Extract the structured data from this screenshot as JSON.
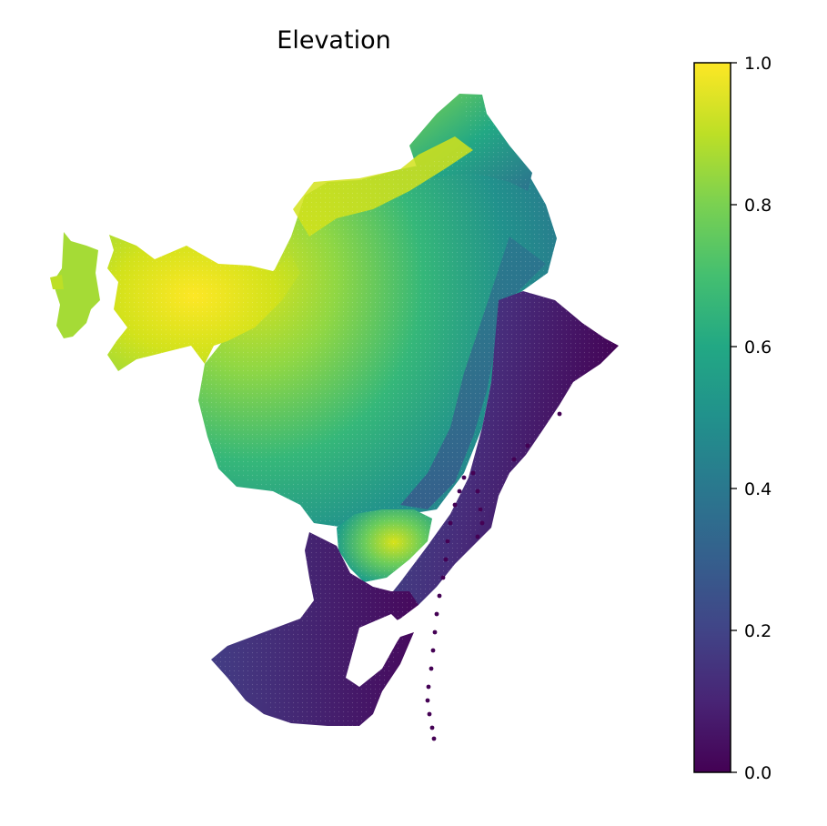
{
  "title": "Elevation",
  "colorbar": {
    "colormap": "viridis",
    "min": 0.0,
    "max": 1.0,
    "ticks": [
      "0.0",
      "0.2",
      "0.4",
      "0.6",
      "0.8",
      "1.0"
    ]
  },
  "colors": {
    "viridis_low": "#440154",
    "viridis_mid": "#21918c",
    "viridis_high": "#fde725",
    "frame": "#000000",
    "background": "#ffffff"
  },
  "map": {
    "type": "scatter-raster",
    "value_pattern": "high elevation (≈0.85–1.0) in the west and north ridge, mid values (≈0.4–0.6) across the centre, low values (≈0.0–0.15) along the south-eastern coast and southern delta, with a high isolated hill (≈0.9) near the south-centre"
  }
}
